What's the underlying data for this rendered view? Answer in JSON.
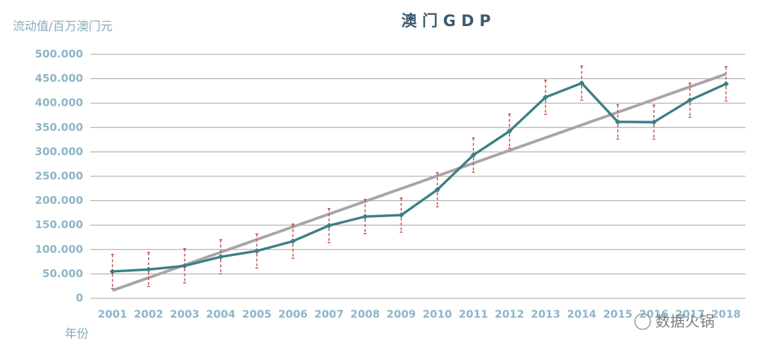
{
  "chart_data": {
    "type": "line",
    "title": "澳 门 G D P",
    "y_axis_label": "流动值/百万澳门元",
    "x_axis_label": "年份",
    "watermark": "数据火锅",
    "categories": [
      "2001",
      "2002",
      "2003",
      "2004",
      "2005",
      "2006",
      "2007",
      "2008",
      "2009",
      "2010",
      "2011",
      "2012",
      "2013",
      "2014",
      "2015",
      "2016",
      "2017",
      "2018"
    ],
    "series": [
      {
        "color": "#3e7f86",
        "values": [
          55000,
          59000,
          66500,
          85000,
          97000,
          117000,
          149000,
          167500,
          170500,
          222500,
          293500,
          342500,
          412000,
          441000,
          361500,
          361000,
          406000,
          439500
        ],
        "errors": [
          35000,
          35000,
          35000,
          35000,
          35000,
          35000,
          35000,
          35000,
          35000,
          35000,
          35000,
          35000,
          35000,
          35000,
          35000,
          35000,
          35000,
          35000
        ],
        "error_color": "#c0504d"
      }
    ],
    "trend": {
      "color": "#a6a6a6",
      "values": [
        16000,
        459500
      ]
    },
    "ylim": [
      0,
      500000
    ],
    "yticks": [
      {
        "value": 0,
        "label": "0"
      },
      {
        "value": 50000,
        "label": "50.000"
      },
      {
        "value": 100000,
        "label": "100.000"
      },
      {
        "value": 150000,
        "label": "150.000"
      },
      {
        "value": 200000,
        "label": "200.000"
      },
      {
        "value": 250000,
        "label": "250.000"
      },
      {
        "value": 300000,
        "label": "300.000"
      },
      {
        "value": 350000,
        "label": "350.000"
      },
      {
        "value": 400000,
        "label": "400.000"
      },
      {
        "value": 450000,
        "label": "450.000"
      },
      {
        "value": 500000,
        "label": "500.000"
      }
    ],
    "grid": true
  }
}
